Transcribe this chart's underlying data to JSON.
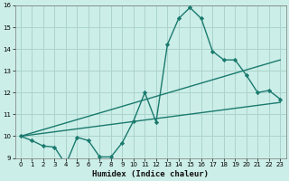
{
  "title": "",
  "xlabel": "Humidex (Indice chaleur)",
  "ylabel": "",
  "bg_color": "#cceee8",
  "grid_color": "#aad4cc",
  "line_color": "#1a7a6e",
  "xlim": [
    -0.5,
    23.5
  ],
  "ylim": [
    9,
    16
  ],
  "xticks": [
    0,
    1,
    2,
    3,
    4,
    5,
    6,
    7,
    8,
    9,
    10,
    11,
    12,
    13,
    14,
    15,
    16,
    17,
    18,
    19,
    20,
    21,
    22,
    23
  ],
  "yticks": [
    9,
    10,
    11,
    12,
    13,
    14,
    15,
    16
  ],
  "line1_x": [
    0,
    1,
    2,
    3,
    4,
    5,
    6,
    7,
    8,
    9,
    10,
    11,
    12,
    13,
    14,
    15,
    16,
    17,
    18,
    19,
    20,
    21,
    22,
    23
  ],
  "line1_y": [
    10.0,
    9.8,
    9.55,
    9.5,
    8.7,
    9.95,
    9.8,
    9.05,
    9.05,
    9.7,
    10.7,
    12.0,
    10.65,
    14.2,
    15.4,
    15.9,
    15.4,
    13.9,
    13.5,
    13.5,
    12.8,
    12.0,
    12.1,
    11.7
  ],
  "line2_x": [
    0,
    23
  ],
  "line2_y": [
    10.0,
    11.55
  ],
  "line3_x": [
    0,
    23
  ],
  "line3_y": [
    10.0,
    13.5
  ],
  "marker": "D",
  "markersize": 2.2,
  "linewidth": 1.0,
  "tick_fontsize": 5.0,
  "xlabel_fontsize": 6.5
}
